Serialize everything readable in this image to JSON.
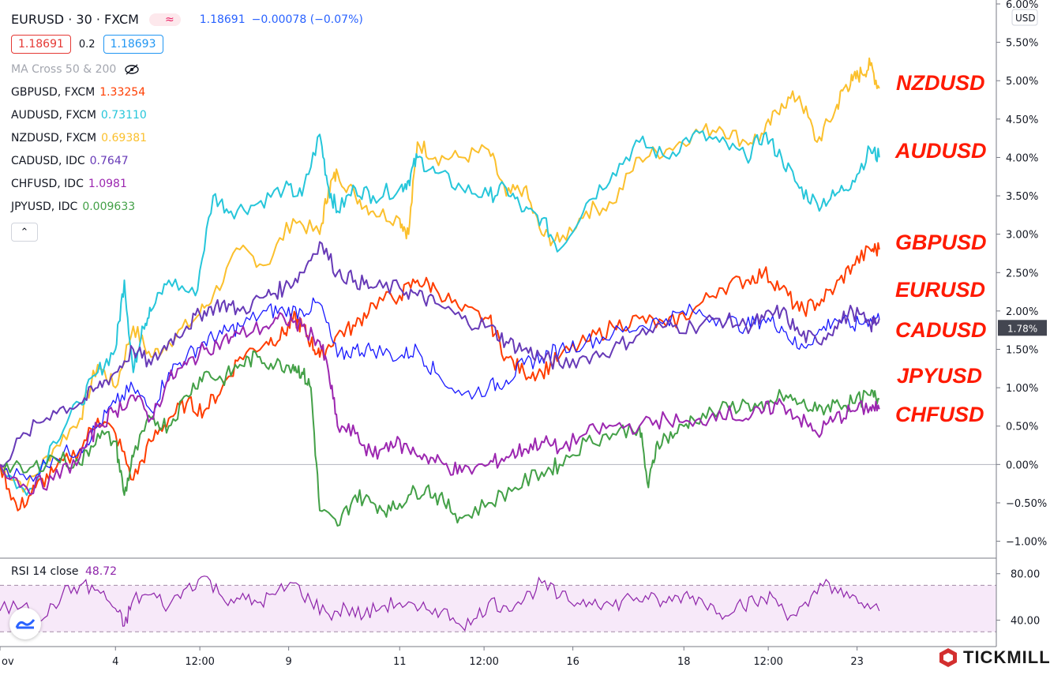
{
  "header": {
    "symbol": "EURUSD · 30 · FXCM",
    "indicator_glyph": "≈",
    "price": "1.18691",
    "change": "−0.00078 (−0.07%)",
    "bid": "1.18691",
    "spread": "0.2",
    "ask": "1.18693",
    "ma_label": "MA Cross 50 & 200",
    "collapse_glyph": "⌃"
  },
  "legend": [
    {
      "name": "GBPUSD, FXCM",
      "value": "1.33254",
      "color": "#ff3d00"
    },
    {
      "name": "AUDUSD, FXCM",
      "value": "0.73110",
      "color": "#26c6da"
    },
    {
      "name": "NZDUSD, FXCM",
      "value": "0.69381",
      "color": "#fbc02d"
    },
    {
      "name": "CADUSD, IDC",
      "value": "0.7647",
      "color": "#673ab7"
    },
    {
      "name": "CHFUSD, IDC",
      "value": "1.0981",
      "color": "#9c27b0"
    },
    {
      "name": "JPYUSD, IDC",
      "value": "0.009633",
      "color": "#43a047"
    }
  ],
  "rsi": {
    "label": "RSI 14 close",
    "value": "48.72"
  },
  "annotations": [
    "NZDUSD",
    "AUDUSD",
    "GBPUSD",
    "EURUSD",
    "CADUSD",
    "JPYUSD",
    "CHFUSD"
  ],
  "watermark": "TICKMILL",
  "chart_data": {
    "type": "line",
    "y_unit": "%",
    "scale_label": "USD",
    "ylim": [
      -1.2,
      6.0
    ],
    "yticks": [
      "6.00%",
      "5.50%",
      "5.00%",
      "4.50%",
      "4.00%",
      "3.50%",
      "3.00%",
      "2.50%",
      "2.00%",
      "1.50%",
      "1.00%",
      "0.50%",
      "0.00%",
      "−0.50%",
      "−1.00%"
    ],
    "last_value_label": "1.78%",
    "x_tick_labels": [
      "ov",
      "4",
      "12:00",
      "9",
      "11",
      "12:00",
      "16",
      "18",
      "12:00",
      "23"
    ],
    "x_domain": [
      0,
      100
    ],
    "x_ticks_x": [
      0,
      13,
      22.5,
      32.5,
      45,
      54.5,
      64.5,
      77,
      86.5,
      96.5
    ],
    "series": [
      {
        "name": "NZDUSD",
        "color": "#fbc02d",
        "x": [
          0,
          3,
          6,
          9,
          11,
          13,
          15,
          17,
          19,
          22,
          24,
          27,
          30,
          33,
          36,
          37,
          38,
          40,
          42,
          45,
          46,
          47,
          49,
          52,
          55,
          57,
          59,
          61,
          63,
          66,
          69,
          72,
          75,
          78,
          81,
          84,
          86,
          88,
          90,
          92,
          94,
          95,
          96,
          97,
          98,
          99
        ],
        "y": [
          0,
          -0.3,
          0.2,
          0.6,
          1.3,
          1.0,
          1.8,
          1.4,
          1.6,
          1.9,
          2.2,
          2.8,
          2.6,
          3.2,
          3.0,
          3.6,
          3.8,
          3.5,
          3.3,
          3.2,
          3.0,
          4.2,
          4.0,
          4.0,
          4.1,
          3.5,
          3.6,
          3.0,
          2.9,
          3.3,
          3.4,
          4.0,
          4.1,
          4.3,
          4.4,
          4.2,
          4.3,
          4.7,
          4.8,
          4.2,
          4.6,
          4.9,
          5.0,
          5.1,
          5.2,
          4.9
        ]
      },
      {
        "name": "AUDUSD",
        "color": "#26c6da",
        "x": [
          0,
          3,
          6,
          9,
          11,
          13,
          14,
          15,
          16,
          17,
          19,
          22,
          24,
          26,
          29,
          32,
          34,
          36,
          37,
          38,
          40,
          42,
          45,
          46,
          47,
          49,
          52,
          55,
          57,
          59,
          61,
          63,
          66,
          69,
          72,
          75,
          78,
          81,
          84,
          86,
          88,
          90,
          92,
          94,
          96,
          98,
          99
        ],
        "y": [
          0,
          -0.4,
          0.3,
          0.8,
          1.2,
          1.5,
          2.4,
          1.2,
          1.8,
          2.0,
          2.4,
          2.2,
          3.5,
          3.3,
          3.4,
          3.6,
          3.5,
          4.3,
          3.6,
          3.3,
          3.6,
          3.5,
          3.6,
          3.7,
          4.0,
          3.8,
          3.6,
          3.5,
          3.6,
          3.3,
          3.2,
          2.8,
          3.4,
          3.8,
          4.2,
          4.0,
          4.3,
          4.2,
          4.0,
          4.3,
          4.0,
          3.6,
          3.4,
          3.5,
          3.7,
          4.1,
          4.0
        ]
      },
      {
        "name": "GBPUSD",
        "color": "#ff3d00",
        "x": [
          0,
          2,
          4,
          6,
          9,
          11,
          13,
          15,
          17,
          19,
          21,
          23,
          25,
          27,
          30,
          32,
          33,
          34,
          35,
          36,
          38,
          40,
          42,
          45,
          47,
          49,
          52,
          55,
          57,
          59,
          61,
          63,
          66,
          69,
          72,
          75,
          78,
          81,
          84,
          86,
          88,
          90,
          92,
          94,
          96,
          98,
          99
        ],
        "y": [
          0,
          -0.6,
          -0.3,
          -0.1,
          0.2,
          0.6,
          0.4,
          -0.2,
          0.3,
          0.6,
          0.8,
          0.7,
          1.0,
          1.4,
          1.6,
          1.7,
          1.9,
          1.8,
          1.6,
          1.4,
          1.7,
          1.8,
          2.1,
          2.2,
          2.4,
          2.3,
          2.0,
          1.9,
          1.4,
          1.2,
          1.2,
          1.4,
          1.6,
          1.8,
          1.9,
          1.8,
          2.0,
          2.3,
          2.4,
          2.5,
          2.3,
          2.0,
          2.1,
          2.3,
          2.6,
          2.8,
          2.8
        ]
      },
      {
        "name": "EURUSD",
        "color": "#1a1aff",
        "x": [
          0,
          3,
          6,
          9,
          11,
          13,
          15,
          17,
          19,
          21,
          23,
          25,
          27,
          30,
          32,
          34,
          36,
          38,
          40,
          42,
          45,
          47,
          49,
          52,
          55,
          57,
          59,
          61,
          63,
          66,
          69,
          72,
          75,
          78,
          81,
          84,
          86,
          88,
          90,
          92,
          94,
          96,
          98,
          99
        ],
        "y": [
          0,
          -0.2,
          0.1,
          0.2,
          0.5,
          0.8,
          1.0,
          0.7,
          1.2,
          1.4,
          1.6,
          1.7,
          1.8,
          2.0,
          2.0,
          2.0,
          2.1,
          1.4,
          1.5,
          1.5,
          1.4,
          1.5,
          1.2,
          0.9,
          1.0,
          1.1,
          1.3,
          1.4,
          1.5,
          1.6,
          1.7,
          1.8,
          1.9,
          2.0,
          1.9,
          1.8,
          1.9,
          1.8,
          1.5,
          1.7,
          1.9,
          1.8,
          1.9,
          1.9
        ]
      },
      {
        "name": "CADUSD",
        "color": "#673ab7",
        "x": [
          0,
          3,
          6,
          9,
          11,
          13,
          15,
          17,
          19,
          21,
          23,
          25,
          27,
          30,
          32,
          34,
          36,
          38,
          40,
          42,
          45,
          47,
          49,
          52,
          55,
          57,
          59,
          61,
          63,
          66,
          69,
          72,
          75,
          78,
          81,
          84,
          86,
          88,
          90,
          92,
          94,
          96,
          98,
          99
        ],
        "y": [
          0,
          0.4,
          0.7,
          0.8,
          1.0,
          1.2,
          1.5,
          1.3,
          1.6,
          1.8,
          2.0,
          2.1,
          2.0,
          2.2,
          2.3,
          2.5,
          2.9,
          2.5,
          2.4,
          2.3,
          2.3,
          2.2,
          2.1,
          1.9,
          1.8,
          1.6,
          1.5,
          1.4,
          1.3,
          1.4,
          1.5,
          1.7,
          1.8,
          1.8,
          1.9,
          1.8,
          1.9,
          2.0,
          1.7,
          1.6,
          1.8,
          2.0,
          1.8,
          1.9
        ]
      },
      {
        "name": "JPYUSD",
        "color": "#43a047",
        "x": [
          0,
          3,
          6,
          9,
          11,
          13,
          14,
          15,
          17,
          19,
          21,
          23,
          25,
          27,
          29,
          31,
          33,
          34,
          35,
          36,
          38,
          40,
          42,
          44,
          46,
          48,
          50,
          52,
          55,
          58,
          61,
          63,
          66,
          69,
          72,
          73,
          74,
          76,
          78,
          81,
          84,
          86,
          88,
          90,
          92,
          94,
          96,
          98,
          99
        ],
        "y": [
          0,
          -0.1,
          0.1,
          0.0,
          0.4,
          0.3,
          -0.4,
          0.1,
          0.6,
          0.5,
          0.9,
          1.2,
          1.1,
          1.3,
          1.4,
          1.3,
          1.3,
          1.2,
          1.0,
          -0.6,
          -0.8,
          -0.4,
          -0.5,
          -0.6,
          -0.4,
          -0.3,
          -0.5,
          -0.7,
          -0.5,
          -0.3,
          -0.1,
          0.0,
          0.3,
          0.4,
          0.5,
          -0.3,
          0.3,
          0.4,
          0.6,
          0.7,
          0.8,
          0.7,
          0.9,
          0.8,
          0.7,
          0.8,
          0.8,
          0.9,
          0.85
        ]
      },
      {
        "name": "CHFUSD",
        "color": "#9c27b0",
        "x": [
          0,
          3,
          6,
          9,
          11,
          13,
          15,
          17,
          19,
          21,
          23,
          25,
          27,
          30,
          32,
          34,
          36,
          37,
          38,
          40,
          42,
          44,
          46,
          48,
          50,
          52,
          55,
          57,
          59,
          61,
          63,
          66,
          69,
          72,
          75,
          78,
          81,
          84,
          86,
          88,
          90,
          92,
          94,
          96,
          98,
          99
        ],
        "y": [
          0,
          -0.3,
          -0.2,
          0.1,
          0.5,
          0.7,
          0.9,
          0.6,
          1.1,
          1.3,
          1.5,
          1.6,
          1.7,
          1.8,
          1.9,
          1.8,
          1.6,
          1.2,
          0.5,
          0.4,
          0.1,
          0.3,
          0.2,
          0.1,
          0.0,
          -0.1,
          0.0,
          0.1,
          0.2,
          0.3,
          0.2,
          0.4,
          0.5,
          0.5,
          0.6,
          0.5,
          0.7,
          0.6,
          0.7,
          0.8,
          0.6,
          0.4,
          0.6,
          0.7,
          0.75,
          0.72
        ]
      }
    ],
    "rsi_panel": {
      "yticks": [
        "80.00",
        "40.00"
      ],
      "band": [
        30,
        70
      ],
      "ylim": [
        20,
        90
      ],
      "color": "#8e24aa",
      "x": [
        0,
        3,
        5,
        7,
        9,
        11,
        13,
        14,
        15,
        17,
        19,
        21,
        23,
        25,
        27,
        29,
        31,
        33,
        35,
        37,
        39,
        41,
        43,
        45,
        47,
        49,
        51,
        53,
        55,
        57,
        59,
        61,
        63,
        65,
        67,
        69,
        71,
        73,
        75,
        77,
        79,
        81,
        83,
        85,
        87,
        89,
        91,
        93,
        95,
        97,
        99
      ],
      "values": [
        48,
        55,
        42,
        62,
        70,
        66,
        50,
        35,
        58,
        62,
        52,
        68,
        78,
        60,
        58,
        55,
        62,
        72,
        56,
        45,
        50,
        44,
        52,
        55,
        48,
        50,
        42,
        36,
        55,
        52,
        58,
        72,
        60,
        55,
        58,
        52,
        60,
        58,
        55,
        62,
        58,
        46,
        54,
        55,
        60,
        44,
        52,
        75,
        60,
        55,
        48
      ]
    }
  }
}
